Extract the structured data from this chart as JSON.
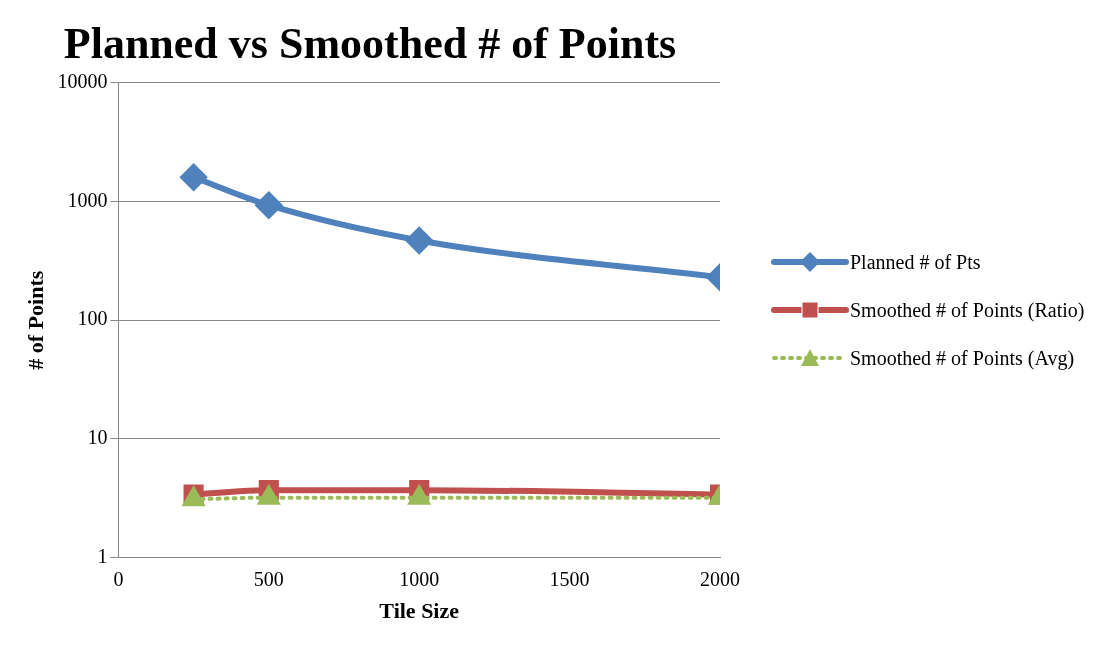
{
  "chart_data": {
    "type": "line",
    "title": "Planned vs Smoothed # of Points",
    "xlabel": "Tile Size",
    "ylabel": "# of Points",
    "x": [
      250,
      500,
      1000,
      2000
    ],
    "series": [
      {
        "name": "Planned # of Pts",
        "color": "#4f81bd",
        "values": [
          1600,
          930,
          470,
          230
        ],
        "marker": "diamond",
        "line_style": "solid"
      },
      {
        "name": "Smoothed # of Points (Ratio)",
        "color": "#c0504d",
        "values": [
          3.4,
          3.7,
          3.7,
          3.4
        ],
        "marker": "square",
        "line_style": "solid"
      },
      {
        "name": "Smoothed # of Points (Avg)",
        "color": "#9bbb59",
        "values": [
          3.1,
          3.2,
          3.2,
          3.2
        ],
        "marker": "triangle",
        "line_style": "dotted"
      }
    ],
    "xlim": [
      0,
      2000
    ],
    "xticks": [
      0,
      500,
      1000,
      1500,
      2000
    ],
    "ylim": [
      1,
      10000
    ],
    "yticks": [
      1,
      10,
      100,
      1000,
      10000
    ],
    "log": "y",
    "grid": "y",
    "legend": "right"
  }
}
